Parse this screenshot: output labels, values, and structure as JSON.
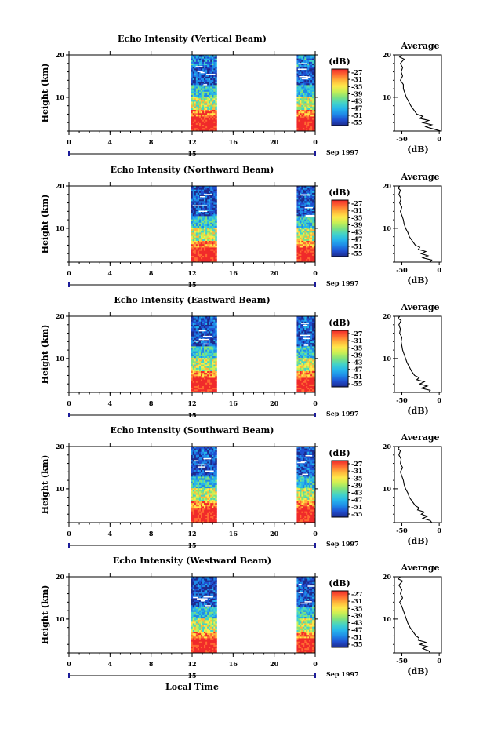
{
  "chart_data": [
    {
      "type": "heatmap",
      "title": "Echo Intensity (Vertical Beam)",
      "ylabel": "Height (km)",
      "ylim": [
        2,
        20
      ],
      "xlim": [
        0,
        24
      ],
      "x_ticks": [
        "0",
        "4",
        "8",
        "12",
        "16",
        "20",
        "0"
      ],
      "y_ticks": [
        "20",
        "10"
      ],
      "date_label": "15",
      "month_year_label": "Sep 1997",
      "data_segments_hours": [
        [
          11.9,
          14.4
        ],
        [
          22.2,
          24
        ]
      ],
      "colorbar": {
        "label": "(dB)",
        "ticks": [
          "-27",
          "-31",
          "-35",
          "-39",
          "-43",
          "-47",
          "-51",
          "-55"
        ]
      },
      "average_profile": {
        "title": "Average",
        "xlabel": "(dB)",
        "xlim": [
          -60,
          3
        ],
        "ylim": [
          2,
          20
        ],
        "x_ticks": [
          "-50",
          "0"
        ],
        "y_ticks": [
          "20",
          "10"
        ],
        "heights_km": [
          2,
          2.5,
          3,
          3.5,
          4,
          4.5,
          5,
          5.5,
          6,
          6.5,
          7,
          8,
          9,
          10,
          11,
          12,
          13,
          14,
          15,
          16,
          17,
          18,
          19,
          19.5,
          20
        ],
        "values_db": [
          2,
          -8,
          -18,
          -10,
          -22,
          -14,
          -26,
          -22,
          -30,
          -32,
          -34,
          -38,
          -41,
          -44,
          -46,
          -48,
          -48,
          -52,
          -49,
          -51,
          -49,
          -52,
          -47,
          -53,
          -50
        ]
      }
    },
    {
      "type": "heatmap",
      "title": "Echo Intensity (Northward Beam)",
      "ylabel": "Height (km)",
      "ylim": [
        2,
        20
      ],
      "xlim": [
        0,
        24
      ],
      "x_ticks": [
        "0",
        "4",
        "8",
        "12",
        "16",
        "20",
        "0"
      ],
      "y_ticks": [
        "20",
        "10"
      ],
      "date_label": "15",
      "month_year_label": "Sep 1997",
      "data_segments_hours": [
        [
          11.9,
          14.4
        ],
        [
          22.2,
          24
        ]
      ],
      "colorbar": {
        "label": "(dB)",
        "ticks": [
          "-27",
          "-31",
          "-35",
          "-39",
          "-43",
          "-47",
          "-51",
          "-55"
        ]
      },
      "average_profile": {
        "title": "Average",
        "xlabel": "(dB)",
        "xlim": [
          -60,
          3
        ],
        "ylim": [
          2,
          20
        ],
        "x_ticks": [
          "-50",
          "0"
        ],
        "y_ticks": [
          "20",
          "10"
        ],
        "heights_km": [
          2,
          2.5,
          3,
          3.5,
          4,
          4.5,
          5,
          5.5,
          6,
          6.5,
          7,
          8,
          9,
          10,
          11,
          12,
          13,
          14,
          15,
          16,
          17,
          18,
          19,
          19.5,
          20
        ],
        "values_db": [
          -12,
          -10,
          -22,
          -15,
          -24,
          -18,
          -28,
          -26,
          -32,
          -34,
          -36,
          -40,
          -42,
          -45,
          -47,
          -48,
          -50,
          -52,
          -50,
          -53,
          -51,
          -54,
          -52,
          -55,
          -53
        ]
      }
    },
    {
      "type": "heatmap",
      "title": "Echo Intensity (Eastward Beam)",
      "ylabel": "Height (km)",
      "ylim": [
        2,
        20
      ],
      "xlim": [
        0,
        24
      ],
      "x_ticks": [
        "0",
        "4",
        "8",
        "12",
        "16",
        "20",
        "0"
      ],
      "y_ticks": [
        "20",
        "10"
      ],
      "date_label": "15",
      "month_year_label": "Sep 1997",
      "data_segments_hours": [
        [
          11.9,
          14.4
        ],
        [
          22.2,
          24
        ]
      ],
      "colorbar": {
        "label": "(dB)",
        "ticks": [
          "-27",
          "-31",
          "-35",
          "-39",
          "-43",
          "-47",
          "-51",
          "-55"
        ]
      },
      "average_profile": {
        "title": "Average",
        "xlabel": "(dB)",
        "xlim": [
          -60,
          3
        ],
        "ylim": [
          2,
          20
        ],
        "x_ticks": [
          "-50",
          "0"
        ],
        "y_ticks": [
          "20",
          "10"
        ],
        "heights_km": [
          2,
          2.5,
          3,
          3.5,
          4,
          4.5,
          5,
          5.5,
          6,
          6.5,
          7,
          8,
          9,
          10,
          11,
          12,
          13,
          14,
          15,
          16,
          17,
          18,
          19,
          19.5,
          20
        ],
        "values_db": [
          -14,
          -12,
          -24,
          -16,
          -26,
          -20,
          -30,
          -27,
          -33,
          -35,
          -37,
          -40,
          -43,
          -45,
          -47,
          -49,
          -50,
          -51,
          -50,
          -53,
          -52,
          -54,
          -51,
          -55,
          -53
        ]
      }
    },
    {
      "type": "heatmap",
      "title": "Echo Intensity (Southward Beam)",
      "ylabel": "Height (km)",
      "ylim": [
        2,
        20
      ],
      "xlim": [
        0,
        24
      ],
      "x_ticks": [
        "0",
        "4",
        "8",
        "12",
        "16",
        "20",
        "0"
      ],
      "y_ticks": [
        "20",
        "10"
      ],
      "date_label": "15",
      "month_year_label": "Sep 1997",
      "data_segments_hours": [
        [
          11.9,
          14.4
        ],
        [
          22.2,
          24
        ]
      ],
      "colorbar": {
        "label": "(dB)",
        "ticks": [
          "-27",
          "-31",
          "-35",
          "-39",
          "-43",
          "-47",
          "-51",
          "-55"
        ]
      },
      "average_profile": {
        "title": "Average",
        "xlabel": "(dB)",
        "xlim": [
          -60,
          3
        ],
        "ylim": [
          2,
          20
        ],
        "x_ticks": [
          "-50",
          "0"
        ],
        "y_ticks": [
          "20",
          "10"
        ],
        "heights_km": [
          2,
          2.5,
          3,
          3.5,
          4,
          4.5,
          5,
          5.5,
          6,
          6.5,
          7,
          8,
          9,
          10,
          11,
          12,
          13,
          14,
          15,
          16,
          17,
          18,
          19,
          19.5,
          20
        ],
        "values_db": [
          -10,
          -12,
          -22,
          -16,
          -24,
          -20,
          -29,
          -27,
          -32,
          -34,
          -36,
          -40,
          -42,
          -45,
          -47,
          -48,
          -50,
          -52,
          -49,
          -52,
          -51,
          -54,
          -52,
          -55,
          -53
        ]
      }
    },
    {
      "type": "heatmap",
      "title": "Echo Intensity (Westward Beam)",
      "ylabel": "Height (km)",
      "ylim": [
        2,
        20
      ],
      "xlim": [
        0,
        24
      ],
      "x_ticks": [
        "0",
        "4",
        "8",
        "12",
        "16",
        "20",
        "0"
      ],
      "y_ticks": [
        "20",
        "10"
      ],
      "date_label": "15",
      "month_year_label": "Sep 1997",
      "data_segments_hours": [
        [
          11.9,
          14.4
        ],
        [
          22.2,
          24
        ]
      ],
      "colorbar": {
        "label": "(dB)",
        "ticks": [
          "-27",
          "-31",
          "-35",
          "-39",
          "-43",
          "-47",
          "-51",
          "-55"
        ]
      },
      "average_profile": {
        "title": "Average",
        "xlabel": "(dB)",
        "xlim": [
          -60,
          3
        ],
        "ylim": [
          2,
          20
        ],
        "x_ticks": [
          "-50",
          "0"
        ],
        "y_ticks": [
          "20",
          "10"
        ],
        "heights_km": [
          2,
          2.5,
          3,
          3.5,
          4,
          4.5,
          5,
          5.5,
          6,
          6.5,
          7,
          8,
          9,
          10,
          11,
          12,
          13,
          14,
          15,
          16,
          17,
          18,
          19,
          19.5,
          20
        ],
        "values_db": [
          -12,
          -14,
          -22,
          -16,
          -26,
          -18,
          -28,
          -27,
          -31,
          -33,
          -35,
          -39,
          -42,
          -44,
          -46,
          -48,
          -50,
          -53,
          -49,
          -52,
          -50,
          -54,
          -49,
          -55,
          -52
        ]
      }
    }
  ],
  "footer": {
    "xlabel": "Local Time"
  },
  "colors": {
    "scale": [
      "#1e2a8c",
      "#1f4fd0",
      "#1f8ae8",
      "#27b6ea",
      "#43d3c8",
      "#7fe27e",
      "#c8ef55",
      "#ffe84a",
      "#ffb43a",
      "#ff6a32",
      "#f02a2a"
    ],
    "date_axis": "#1c1c9a"
  }
}
